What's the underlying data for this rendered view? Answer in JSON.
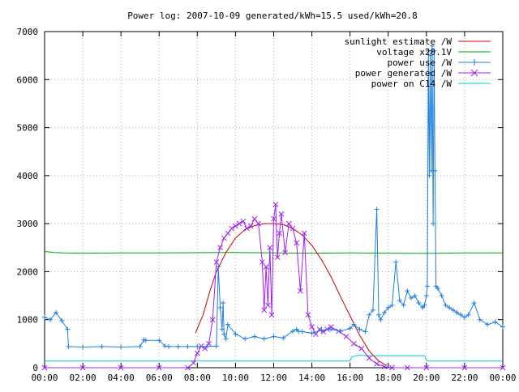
{
  "chart_data": {
    "type": "line",
    "title": "Power log: 2007-10-09 generated/kWh=15.5 used/kWh=20.8",
    "xlabel": "",
    "ylabel": "",
    "xlim": [
      0,
      24
    ],
    "ylim": [
      0,
      7000
    ],
    "x_ticks": [
      {
        "x": 0,
        "label": "00:00"
      },
      {
        "x": 2,
        "label": "02:00"
      },
      {
        "x": 4,
        "label": "04:00"
      },
      {
        "x": 6,
        "label": "06:00"
      },
      {
        "x": 8,
        "label": "08:00"
      },
      {
        "x": 10,
        "label": "10:00"
      },
      {
        "x": 12,
        "label": "12:00"
      },
      {
        "x": 14,
        "label": "14:00"
      },
      {
        "x": 16,
        "label": "16:00"
      },
      {
        "x": 18,
        "label": "18:00"
      },
      {
        "x": 20,
        "label": "20:00"
      },
      {
        "x": 22,
        "label": "22:00"
      },
      {
        "x": 24,
        "label": "00:00"
      }
    ],
    "y_ticks": [
      {
        "y": 0,
        "label": "0"
      },
      {
        "y": 1000,
        "label": "1000"
      },
      {
        "y": 2000,
        "label": "2000"
      },
      {
        "y": 3000,
        "label": "3000"
      },
      {
        "y": 4000,
        "label": "4000"
      },
      {
        "y": 5000,
        "label": "5000"
      },
      {
        "y": 6000,
        "label": "6000"
      },
      {
        "y": 7000,
        "label": "7000"
      }
    ],
    "grid": true,
    "legend_position": "top-right",
    "series": [
      {
        "name": "sunlight estimate /W",
        "color": "#cc0000",
        "marker": "none",
        "x": [
          7.9,
          8.3,
          8.7,
          9.0,
          9.5,
          10.0,
          10.5,
          11.0,
          11.5,
          12.0,
          12.5,
          13.0,
          13.5,
          14.0,
          14.5,
          15.0,
          15.5,
          16.0,
          16.5,
          17.0,
          17.5,
          17.9
        ],
        "y": [
          720,
          1100,
          1650,
          2000,
          2400,
          2700,
          2880,
          2960,
          3000,
          3000,
          2980,
          2900,
          2760,
          2550,
          2250,
          1900,
          1480,
          1080,
          680,
          350,
          140,
          50
        ]
      },
      {
        "name": "voltage x20.1V",
        "color": "#00a000",
        "marker": "none",
        "x": [
          0,
          0.5,
          1,
          2,
          4,
          6,
          8,
          10,
          12,
          14,
          16,
          18,
          20,
          22,
          24
        ],
        "y": [
          2420,
          2400,
          2390,
          2385,
          2390,
          2390,
          2395,
          2400,
          2390,
          2385,
          2390,
          2385,
          2380,
          2390,
          2390
        ]
      },
      {
        "name": "power use /W",
        "color": "#1f7fe0",
        "marker": "plus",
        "x": [
          0,
          0.3,
          0.6,
          0.9,
          1.2,
          1.25,
          2,
          3,
          4,
          5,
          5.2,
          5.3,
          6,
          6.3,
          6.5,
          7,
          7.5,
          8,
          8.5,
          9.0,
          9.1,
          9.2,
          9.3,
          9.35,
          9.4,
          9.5,
          9.6,
          10,
          10.5,
          11,
          11.5,
          12,
          12.5,
          13,
          13.2,
          13.3,
          13.5,
          14,
          14.5,
          15,
          15.5,
          16,
          16.2,
          16.5,
          16.8,
          17,
          17.2,
          17.4,
          17.5,
          17.6,
          17.8,
          18,
          18.2,
          18.4,
          18.6,
          18.8,
          19,
          19.2,
          19.4,
          19.6,
          19.8,
          19.9,
          20.0,
          20.05,
          20.1,
          20.15,
          20.2,
          20.25,
          20.3,
          20.35,
          20.4,
          20.45,
          20.5,
          20.6,
          20.8,
          21,
          21.2,
          21.4,
          21.6,
          21.8,
          22,
          22.2,
          22.5,
          22.8,
          23.2,
          23.6,
          24
        ],
        "y": [
          1050,
          1000,
          1150,
          980,
          800,
          440,
          430,
          440,
          430,
          440,
          580,
          570,
          570,
          450,
          440,
          440,
          440,
          440,
          440,
          450,
          2100,
          1250,
          800,
          1350,
          700,
          600,
          900,
          700,
          600,
          650,
          600,
          650,
          620,
          760,
          800,
          760,
          750,
          720,
          780,
          800,
          760,
          820,
          900,
          800,
          750,
          1100,
          1200,
          3300,
          1100,
          1000,
          1150,
          1250,
          1300,
          2200,
          1400,
          1300,
          1600,
          1450,
          1500,
          1350,
          1250,
          1300,
          1500,
          1700,
          6600,
          4000,
          6500,
          4100,
          6700,
          3000,
          6600,
          4100,
          1700,
          1650,
          1500,
          1300,
          1250,
          1200,
          1150,
          1100,
          1050,
          1100,
          1350,
          1000,
          900,
          950,
          850
        ]
      },
      {
        "name": "power generated /W",
        "color": "#a020f0",
        "marker": "cross",
        "x": [
          0,
          2,
          4,
          6,
          7.5,
          7.8,
          8,
          8.2,
          8.4,
          8.6,
          8.8,
          9.0,
          9.2,
          9.4,
          9.6,
          9.8,
          10,
          10.2,
          10.4,
          10.6,
          10.8,
          11.0,
          11.2,
          11.4,
          11.5,
          11.6,
          11.7,
          11.8,
          11.9,
          12.0,
          12.1,
          12.2,
          12.3,
          12.4,
          12.6,
          12.8,
          13.0,
          13.2,
          13.4,
          13.6,
          13.8,
          14.0,
          14.2,
          14.4,
          14.6,
          14.8,
          15.0,
          15.4,
          15.8,
          16.2,
          16.6,
          17.0,
          17.4,
          17.8,
          18.2,
          19,
          20,
          22,
          24
        ],
        "y": [
          0,
          0,
          0,
          0,
          0,
          100,
          300,
          450,
          400,
          500,
          1000,
          2200,
          2500,
          2700,
          2800,
          2900,
          2950,
          3000,
          3050,
          2900,
          2950,
          3100,
          3000,
          2200,
          1200,
          2100,
          1300,
          2500,
          1100,
          3100,
          3400,
          2300,
          2800,
          3200,
          2400,
          3000,
          2900,
          2600,
          1600,
          2800,
          1100,
          850,
          700,
          800,
          750,
          800,
          850,
          760,
          650,
          500,
          400,
          200,
          80,
          20,
          0,
          0,
          0,
          0,
          0
        ]
      },
      {
        "name": "power on C14 /W",
        "color": "#00cccc",
        "marker": "none",
        "x": [
          0,
          4,
          8,
          12,
          16.0,
          16.1,
          16.5,
          17,
          17.1,
          17.5,
          18,
          19,
          19.9,
          20.0,
          20.1,
          21,
          22,
          24
        ],
        "y": [
          140,
          140,
          140,
          140,
          140,
          230,
          260,
          250,
          240,
          250,
          250,
          250,
          250,
          150,
          140,
          140,
          140,
          140
        ]
      }
    ]
  }
}
